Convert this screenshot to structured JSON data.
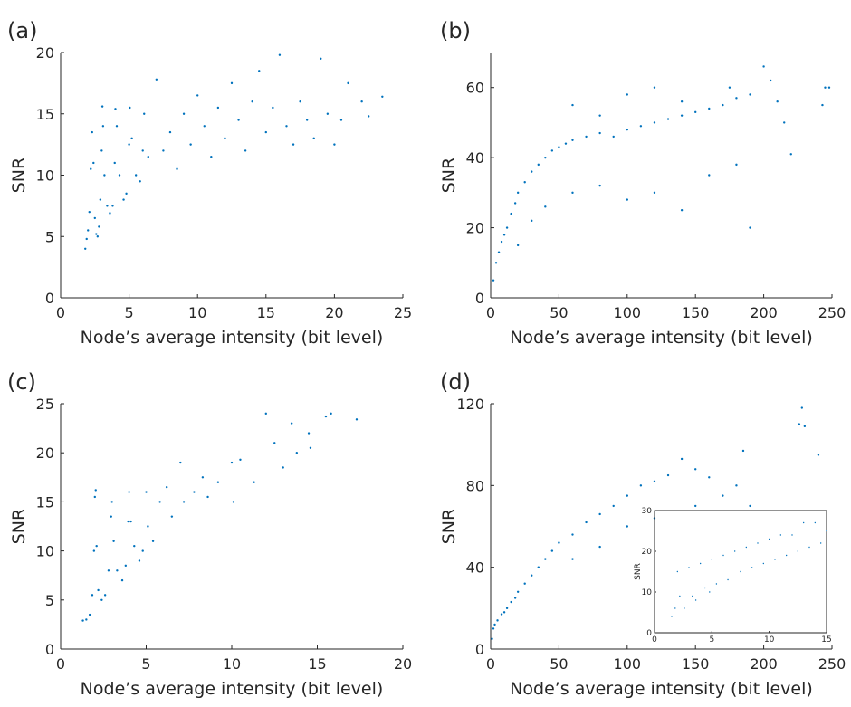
{
  "colors": {
    "marker": "#0072BD",
    "axes": "#262626",
    "background": "#ffffff"
  },
  "chart_data": [
    {
      "panel": "(a)",
      "type": "scatter",
      "xlabel": "Node’s average intensity (bit level)",
      "ylabel": "SNR",
      "xlim": [
        0,
        25
      ],
      "ylim": [
        0,
        20
      ],
      "xticks": [
        0,
        5,
        10,
        15,
        20,
        25
      ],
      "yticks": [
        0,
        5,
        10,
        15,
        20
      ],
      "points_description_only": false,
      "points": [
        [
          1.8,
          4.0
        ],
        [
          1.9,
          4.8
        ],
        [
          2.0,
          5.5
        ],
        [
          2.1,
          7.0
        ],
        [
          2.2,
          10.5
        ],
        [
          2.3,
          13.5
        ],
        [
          2.4,
          11.0
        ],
        [
          2.5,
          6.5
        ],
        [
          2.6,
          5.2
        ],
        [
          2.7,
          5.0
        ],
        [
          2.8,
          5.8
        ],
        [
          2.9,
          8.0
        ],
        [
          3.0,
          12.0
        ],
        [
          3.05,
          15.6
        ],
        [
          3.1,
          14.0
        ],
        [
          3.2,
          10.0
        ],
        [
          3.4,
          7.5
        ],
        [
          3.6,
          6.9
        ],
        [
          3.8,
          7.5
        ],
        [
          3.95,
          11.0
        ],
        [
          4.0,
          15.4
        ],
        [
          4.1,
          14.0
        ],
        [
          4.3,
          10.0
        ],
        [
          4.6,
          8.0
        ],
        [
          4.8,
          8.5
        ],
        [
          5.0,
          12.5
        ],
        [
          5.05,
          15.5
        ],
        [
          5.2,
          13.0
        ],
        [
          5.5,
          10.0
        ],
        [
          5.8,
          9.5
        ],
        [
          6.0,
          12.0
        ],
        [
          6.1,
          15.0
        ],
        [
          6.4,
          11.5
        ],
        [
          7.0,
          17.8
        ],
        [
          7.5,
          12.0
        ],
        [
          8.0,
          13.5
        ],
        [
          8.5,
          10.5
        ],
        [
          9.0,
          15.0
        ],
        [
          9.5,
          12.5
        ],
        [
          10.0,
          16.5
        ],
        [
          10.5,
          14.0
        ],
        [
          11.0,
          11.5
        ],
        [
          11.5,
          15.5
        ],
        [
          12.0,
          13.0
        ],
        [
          12.5,
          17.5
        ],
        [
          13.0,
          14.5
        ],
        [
          13.5,
          12.0
        ],
        [
          14.0,
          16.0
        ],
        [
          14.5,
          18.5
        ],
        [
          15.0,
          13.5
        ],
        [
          15.5,
          15.5
        ],
        [
          16.0,
          19.8
        ],
        [
          16.5,
          14.0
        ],
        [
          17.0,
          12.5
        ],
        [
          17.5,
          16.0
        ],
        [
          18.0,
          14.5
        ],
        [
          18.5,
          13.0
        ],
        [
          19.0,
          19.5
        ],
        [
          19.5,
          15.0
        ],
        [
          20.0,
          12.5
        ],
        [
          20.5,
          14.5
        ],
        [
          21.0,
          17.5
        ],
        [
          22.0,
          16.0
        ],
        [
          22.5,
          14.8
        ],
        [
          23.5,
          16.4
        ]
      ]
    },
    {
      "panel": "(b)",
      "type": "scatter",
      "xlabel": "Node’s average intensity (bit level)",
      "ylabel": "SNR",
      "xlim": [
        0,
        250
      ],
      "ylim": [
        0,
        70
      ],
      "xticks": [
        0,
        50,
        100,
        150,
        200,
        250
      ],
      "yticks": [
        0,
        20,
        40,
        60
      ],
      "points": [
        [
          2,
          5
        ],
        [
          4,
          10
        ],
        [
          6,
          13
        ],
        [
          8,
          16
        ],
        [
          10,
          18
        ],
        [
          12,
          20
        ],
        [
          15,
          24
        ],
        [
          18,
          27
        ],
        [
          20,
          30
        ],
        [
          25,
          33
        ],
        [
          30,
          36
        ],
        [
          35,
          38
        ],
        [
          40,
          40
        ],
        [
          45,
          42
        ],
        [
          50,
          43
        ],
        [
          55,
          44
        ],
        [
          60,
          45
        ],
        [
          70,
          46
        ],
        [
          80,
          47
        ],
        [
          90,
          46
        ],
        [
          100,
          48
        ],
        [
          110,
          49
        ],
        [
          120,
          50
        ],
        [
          130,
          51
        ],
        [
          140,
          52
        ],
        [
          150,
          53
        ],
        [
          160,
          54
        ],
        [
          170,
          55
        ],
        [
          180,
          57
        ],
        [
          190,
          58
        ],
        [
          200,
          66
        ],
        [
          205,
          62
        ],
        [
          210,
          56
        ],
        [
          215,
          50
        ],
        [
          220,
          41
        ],
        [
          245,
          60
        ],
        [
          248,
          60
        ],
        [
          243,
          55
        ],
        [
          20,
          15
        ],
        [
          30,
          22
        ],
        [
          40,
          26
        ],
        [
          60,
          30
        ],
        [
          80,
          32
        ],
        [
          100,
          28
        ],
        [
          120,
          30
        ],
        [
          140,
          25
        ],
        [
          160,
          35
        ],
        [
          180,
          38
        ],
        [
          190,
          20
        ],
        [
          60,
          55
        ],
        [
          80,
          52
        ],
        [
          100,
          58
        ],
        [
          120,
          60
        ],
        [
          140,
          56
        ],
        [
          175,
          60
        ]
      ]
    },
    {
      "panel": "(c)",
      "type": "scatter",
      "xlabel": "Node’s average intensity (bit level)",
      "ylabel": "SNR",
      "xlim": [
        0,
        20
      ],
      "ylim": [
        0,
        25
      ],
      "xticks": [
        0,
        5,
        10,
        15,
        20
      ],
      "yticks": [
        0,
        5,
        10,
        15,
        20,
        25
      ],
      "points": [
        [
          1.3,
          2.9
        ],
        [
          1.5,
          3.0
        ],
        [
          1.7,
          3.5
        ],
        [
          1.85,
          5.5
        ],
        [
          1.95,
          10.0
        ],
        [
          2.0,
          15.5
        ],
        [
          2.05,
          16.2
        ],
        [
          2.1,
          10.5
        ],
        [
          2.2,
          6.0
        ],
        [
          2.4,
          5.0
        ],
        [
          2.6,
          5.5
        ],
        [
          2.8,
          8.0
        ],
        [
          2.95,
          13.5
        ],
        [
          3.0,
          15.0
        ],
        [
          3.1,
          11.0
        ],
        [
          3.3,
          8.0
        ],
        [
          3.6,
          7.0
        ],
        [
          3.8,
          8.5
        ],
        [
          3.95,
          13.0
        ],
        [
          4.0,
          16.0
        ],
        [
          4.1,
          13.0
        ],
        [
          4.3,
          10.5
        ],
        [
          4.6,
          9.0
        ],
        [
          4.8,
          10.0
        ],
        [
          5.0,
          16.0
        ],
        [
          5.1,
          12.5
        ],
        [
          5.4,
          11.0
        ],
        [
          5.8,
          15.0
        ],
        [
          6.2,
          16.5
        ],
        [
          6.5,
          13.5
        ],
        [
          7.0,
          19.0
        ],
        [
          7.2,
          15.0
        ],
        [
          7.8,
          16.0
        ],
        [
          8.3,
          17.5
        ],
        [
          8.6,
          15.5
        ],
        [
          9.2,
          17.0
        ],
        [
          10.0,
          19.0
        ],
        [
          10.1,
          15.0
        ],
        [
          10.5,
          19.3
        ],
        [
          11.3,
          17.0
        ],
        [
          12.0,
          24.0
        ],
        [
          12.5,
          21.0
        ],
        [
          13.0,
          18.5
        ],
        [
          13.5,
          23.0
        ],
        [
          13.8,
          20.0
        ],
        [
          14.5,
          22.0
        ],
        [
          14.6,
          20.5
        ],
        [
          15.5,
          23.7
        ],
        [
          15.8,
          24.0
        ],
        [
          17.3,
          23.4
        ]
      ]
    },
    {
      "panel": "(d)",
      "type": "scatter",
      "xlabel": "Node’s average intensity (bit level)",
      "ylabel": "SNR",
      "xlim": [
        0,
        250
      ],
      "ylim": [
        0,
        120
      ],
      "xticks": [
        0,
        50,
        100,
        150,
        200,
        250
      ],
      "yticks": [
        0,
        40,
        80,
        120
      ],
      "points": [
        [
          1,
          5
        ],
        [
          2,
          10
        ],
        [
          3,
          12
        ],
        [
          5,
          14
        ],
        [
          8,
          17
        ],
        [
          10,
          18
        ],
        [
          12,
          20
        ],
        [
          15,
          23
        ],
        [
          18,
          25
        ],
        [
          20,
          28
        ],
        [
          25,
          32
        ],
        [
          30,
          36
        ],
        [
          35,
          40
        ],
        [
          40,
          44
        ],
        [
          45,
          48
        ],
        [
          50,
          52
        ],
        [
          60,
          56
        ],
        [
          70,
          62
        ],
        [
          80,
          66
        ],
        [
          90,
          70
        ],
        [
          100,
          75
        ],
        [
          110,
          80
        ],
        [
          120,
          82
        ],
        [
          130,
          85
        ],
        [
          140,
          93
        ],
        [
          150,
          88
        ],
        [
          160,
          84
        ],
        [
          170,
          75
        ],
        [
          180,
          80
        ],
        [
          185,
          97
        ],
        [
          190,
          70
        ],
        [
          228,
          118
        ],
        [
          226,
          110
        ],
        [
          230,
          109
        ],
        [
          240,
          95
        ],
        [
          60,
          44
        ],
        [
          80,
          50
        ],
        [
          100,
          60
        ],
        [
          120,
          64
        ],
        [
          150,
          70
        ]
      ],
      "inset": {
        "type": "scatter",
        "xlabel": "",
        "ylabel": "SNR",
        "xlim": [
          0,
          15
        ],
        "ylim": [
          0,
          30
        ],
        "xticks": [
          0,
          5,
          10,
          15
        ],
        "yticks": [
          0,
          10,
          20,
          30
        ],
        "points": [
          [
            1.5,
            4
          ],
          [
            1.8,
            6
          ],
          [
            2.0,
            15
          ],
          [
            2.2,
            9
          ],
          [
            2.6,
            6
          ],
          [
            3.0,
            16
          ],
          [
            3.3,
            9
          ],
          [
            3.6,
            8
          ],
          [
            4.0,
            17
          ],
          [
            4.4,
            11
          ],
          [
            4.8,
            10
          ],
          [
            5.0,
            18
          ],
          [
            5.4,
            12
          ],
          [
            6.0,
            19
          ],
          [
            6.4,
            13
          ],
          [
            7.0,
            20
          ],
          [
            7.5,
            15
          ],
          [
            8.0,
            21
          ],
          [
            8.5,
            16
          ],
          [
            9.0,
            22
          ],
          [
            9.5,
            17
          ],
          [
            10.0,
            23
          ],
          [
            10.5,
            18
          ],
          [
            11.0,
            24
          ],
          [
            11.5,
            19
          ],
          [
            12.0,
            24
          ],
          [
            12.5,
            20
          ],
          [
            13.0,
            27
          ],
          [
            13.5,
            21
          ],
          [
            14.0,
            27
          ],
          [
            14.5,
            22
          ],
          [
            15.0,
            25
          ]
        ]
      }
    }
  ]
}
